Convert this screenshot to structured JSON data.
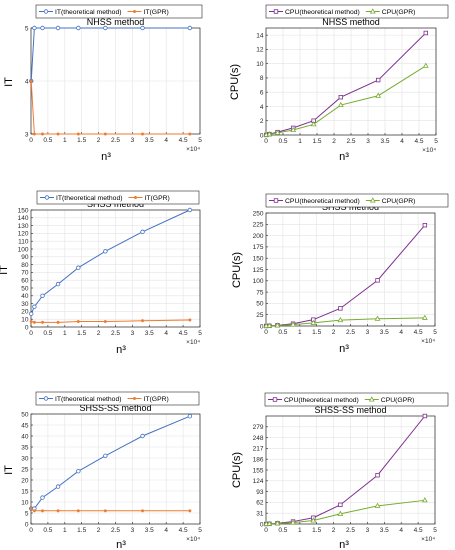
{
  "chart_data": [
    {
      "type": "line",
      "title": "NHSS method",
      "xlabel": "n³",
      "ylabel": "IT",
      "x_exponent": "×10⁴",
      "x": [
        0.0064,
        0.1,
        0.34,
        0.8,
        1.4,
        2.2,
        3.3,
        4.7
      ],
      "xlim": [
        0,
        5
      ],
      "ylim": [
        3,
        5
      ],
      "yticks": [
        3,
        4,
        5
      ],
      "xticks": [
        0,
        0.5,
        1,
        1.5,
        2,
        2.5,
        3,
        3.5,
        4,
        4.5,
        5
      ],
      "ytick_labels": [
        "3",
        "4",
        "5"
      ],
      "xtick_labels": [
        "0",
        "0.5",
        "1",
        "1.5",
        "2",
        "2.5",
        "3",
        "3.5",
        "4",
        "4.5",
        "5"
      ],
      "grid": true,
      "legend_position": "top (outside)",
      "series": [
        {
          "name": "IT(theoretical method)",
          "color": "#4472c4",
          "marker": "circle",
          "values": [
            4,
            5,
            5,
            5,
            5,
            5,
            5,
            5
          ]
        },
        {
          "name": "IT(GPR)",
          "color": "#ed7d31",
          "marker": "dot",
          "values": [
            4,
            3,
            3,
            3,
            3,
            3,
            3,
            3
          ]
        }
      ]
    },
    {
      "type": "line",
      "title": "NHSS method",
      "xlabel": "n³",
      "ylabel": "CPU(s)",
      "x_exponent": "×10⁴",
      "x": [
        0.0064,
        0.1,
        0.34,
        0.8,
        1.4,
        2.2,
        3.3,
        4.7
      ],
      "xlim": [
        0,
        5
      ],
      "ylim": [
        0,
        15
      ],
      "yticks": [
        0,
        2,
        4,
        6,
        8,
        10,
        12,
        14
      ],
      "xticks": [
        0,
        0.5,
        1,
        1.5,
        2,
        2.5,
        3,
        3.5,
        4,
        4.5,
        5
      ],
      "ytick_labels": [
        "0",
        "2",
        "4",
        "6",
        "8",
        "10",
        "12",
        "14"
      ],
      "xtick_labels": [
        "0",
        "0.5",
        "1",
        "1.5",
        "2",
        "2.5",
        "3",
        "3.5",
        "4",
        "4.5",
        "5"
      ],
      "grid": true,
      "legend_position": "top (outside)",
      "series": [
        {
          "name": "CPU(theoretical method)",
          "color": "#7e2f8e",
          "marker": "square",
          "values": [
            0.01,
            0.12,
            0.4,
            1.0,
            2.0,
            5.3,
            7.7,
            14.3
          ]
        },
        {
          "name": "CPU(GPR)",
          "color": "#77ac30",
          "marker": "triangle",
          "values": [
            0.01,
            0.1,
            0.3,
            0.7,
            1.5,
            4.2,
            5.5,
            9.7
          ]
        }
      ]
    },
    {
      "type": "line",
      "title": "SHSS method",
      "xlabel": "n³",
      "ylabel": "IT",
      "x_exponent": "×10⁴",
      "x": [
        0.0064,
        0.1,
        0.34,
        0.8,
        1.4,
        2.2,
        3.3,
        4.7
      ],
      "xlim": [
        0,
        5
      ],
      "ylim": [
        0,
        150
      ],
      "yticks": [
        0,
        10,
        20,
        30,
        40,
        50,
        60,
        70,
        80,
        90,
        100,
        110,
        120,
        130,
        140,
        150
      ],
      "xticks": [
        0,
        0.5,
        1,
        1.5,
        2,
        2.5,
        3,
        3.5,
        4,
        4.5,
        5
      ],
      "ytick_labels": [
        "0",
        "10",
        "20",
        "30",
        "40",
        "50",
        "60",
        "70",
        "80",
        "90",
        "100",
        "110",
        "120",
        "130",
        "140",
        "150"
      ],
      "xtick_labels": [
        "0",
        "0.5",
        "1",
        "1.5",
        "2",
        "2.5",
        "3",
        "3.5",
        "4",
        "4.5",
        "5"
      ],
      "grid": true,
      "legend_position": "top (outside)",
      "series": [
        {
          "name": "IT(theoretical method)",
          "color": "#4472c4",
          "marker": "circle",
          "values": [
            17,
            26,
            40,
            55,
            76,
            97,
            122,
            150
          ]
        },
        {
          "name": "IT(GPR)",
          "color": "#ed7d31",
          "marker": "dot",
          "values": [
            7,
            6,
            6,
            6,
            7,
            7,
            8,
            9
          ]
        }
      ]
    },
    {
      "type": "line",
      "title": "SHSS method",
      "xlabel": "n³",
      "ylabel": "CPU(s)",
      "x_exponent": "×10⁴",
      "x": [
        0.0064,
        0.1,
        0.34,
        0.8,
        1.4,
        2.2,
        3.3,
        4.7
      ],
      "xlim": [
        0,
        5
      ],
      "ylim": [
        0,
        250
      ],
      "yticks": [
        0,
        25,
        50,
        75,
        100,
        125,
        150,
        175,
        200,
        225,
        250
      ],
      "xticks": [
        0,
        0.5,
        1,
        1.5,
        2,
        2.5,
        3,
        3.5,
        4,
        4.5,
        5
      ],
      "ytick_labels": [
        "0",
        "25",
        "50",
        "75",
        "100",
        "125",
        "150",
        "175",
        "200",
        "225",
        "250"
      ],
      "xtick_labels": [
        "0",
        "0.5",
        "1",
        "1.5",
        "2",
        "2.5",
        "3",
        "3.5",
        "4",
        "4.5",
        "5"
      ],
      "grid": true,
      "legend_position": "top (outside)",
      "series": [
        {
          "name": "CPU(theoretical method)",
          "color": "#7e2f8e",
          "marker": "square",
          "values": [
            0.05,
            0.4,
            1.5,
            5,
            14,
            39,
            101,
            223
          ]
        },
        {
          "name": "CPU(GPR)",
          "color": "#77ac30",
          "marker": "triangle",
          "values": [
            0.05,
            0.3,
            1.0,
            3,
            7,
            13,
            16,
            18
          ]
        }
      ]
    },
    {
      "type": "line",
      "title": "SHSS-SS method",
      "xlabel": "n³",
      "ylabel": "IT",
      "x_exponent": "×10⁴",
      "x": [
        0.0064,
        0.1,
        0.34,
        0.8,
        1.4,
        2.2,
        3.3,
        4.7
      ],
      "xlim": [
        0,
        5
      ],
      "ylim": [
        0,
        50
      ],
      "yticks": [
        0,
        5,
        10,
        15,
        20,
        25,
        30,
        35,
        40,
        45,
        50
      ],
      "xticks": [
        0,
        0.5,
        1,
        1.5,
        2,
        2.5,
        3,
        3.5,
        4,
        4.5,
        5
      ],
      "ytick_labels": [
        "0",
        "5",
        "10",
        "15",
        "20",
        "25",
        "30",
        "35",
        "40",
        "45",
        "50"
      ],
      "xtick_labels": [
        "0",
        "0.5",
        "1",
        "1.5",
        "2",
        "2.5",
        "3",
        "3.5",
        "4",
        "4.5",
        "5"
      ],
      "grid": true,
      "legend_position": "top (outside)",
      "series": [
        {
          "name": "IT(theoretical method)",
          "color": "#4472c4",
          "marker": "circle",
          "values": [
            7,
            7,
            12,
            17,
            24,
            31,
            40,
            49
          ]
        },
        {
          "name": "IT(GPR)",
          "color": "#ed7d31",
          "marker": "dot",
          "values": [
            7,
            6,
            6,
            6,
            6,
            6,
            6,
            6
          ]
        }
      ]
    },
    {
      "type": "line",
      "title": "SHSS-SS method",
      "xlabel": "n³",
      "ylabel": "CPU(s)",
      "x_exponent": "×10⁴",
      "x": [
        0.0064,
        0.1,
        0.34,
        0.8,
        1.4,
        2.2,
        3.3,
        4.7
      ],
      "xlim": [
        0,
        5
      ],
      "ylim": [
        0,
        310
      ],
      "yticks": [
        0,
        31,
        62,
        93,
        124,
        155,
        186,
        217,
        248,
        279
      ],
      "xticks": [
        0,
        0.5,
        1,
        1.5,
        2,
        2.5,
        3,
        3.5,
        4,
        4.5,
        5
      ],
      "ytick_labels": [
        "0",
        "31",
        "62",
        "93",
        "124",
        "155",
        "186",
        "217",
        "248",
        "279"
      ],
      "xtick_labels": [
        "0",
        "0.5",
        "1",
        "1.5",
        "2",
        "2.5",
        "3",
        "3.5",
        "4",
        "4.5",
        "5"
      ],
      "grid": true,
      "legend_position": "top (outside)",
      "series": [
        {
          "name": "CPU(theoretical method)",
          "color": "#7e2f8e",
          "marker": "square",
          "values": [
            0.05,
            0.5,
            2,
            7,
            18,
            55,
            140,
            310
          ]
        },
        {
          "name": "CPU(GPR)",
          "color": "#77ac30",
          "marker": "triangle",
          "values": [
            0.05,
            0.4,
            1.5,
            4,
            10,
            29,
            52,
            68
          ]
        }
      ]
    }
  ]
}
